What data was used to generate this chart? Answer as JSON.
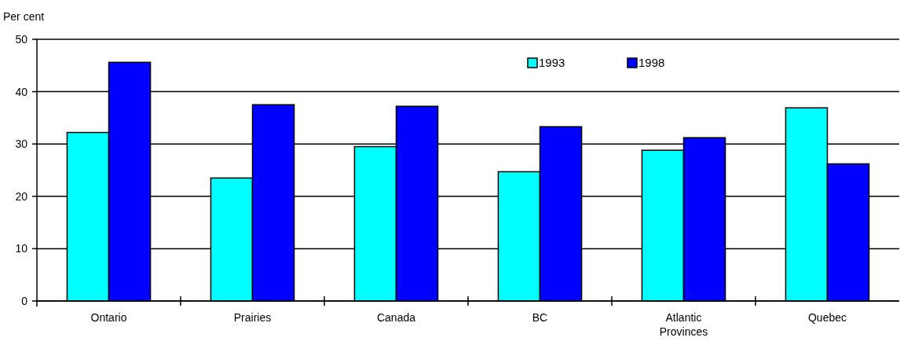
{
  "chart_data": {
    "type": "bar",
    "ylabel": "Per cent",
    "categories": [
      "Ontario",
      "Prairies",
      "Canada",
      "BC",
      "Atlantic Provinces",
      "Quebec"
    ],
    "series": [
      {
        "name": "1993",
        "color": "#00ffff",
        "values": [
          32.2,
          23.5,
          29.5,
          24.7,
          28.8,
          36.9
        ]
      },
      {
        "name": "1998",
        "color": "#0000ff",
        "values": [
          45.6,
          37.5,
          37.2,
          33.3,
          31.2,
          26.2
        ]
      }
    ],
    "ylim": [
      0,
      50
    ],
    "yticks": [
      0,
      10,
      20,
      30,
      40,
      50
    ],
    "grid": "y",
    "legend": "top right"
  }
}
